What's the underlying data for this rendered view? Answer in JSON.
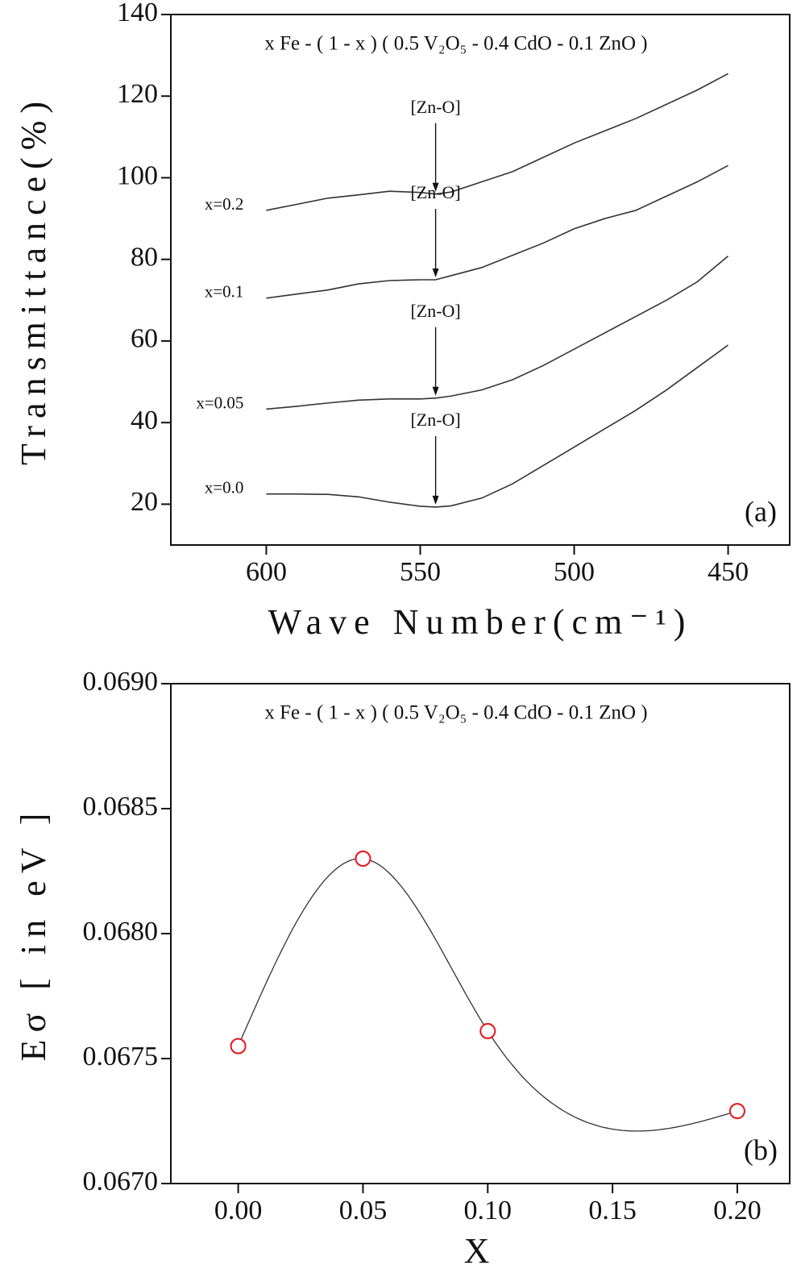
{
  "chart_data": [
    {
      "type": "line",
      "title": "x Fe - ( 1 - x ) ( 0.5 V₂O₅ - 0.4 CdO - 0.1 ZnO )",
      "x_label": "Wave Number(cm⁻¹)",
      "y_label": "Transmittance(%)",
      "panel_label": "(a)",
      "x": [
        600,
        590,
        580,
        570,
        560,
        550,
        545,
        540,
        530,
        520,
        510,
        500,
        490,
        480,
        470,
        460,
        450
      ],
      "series": [
        {
          "name": "x=0.2",
          "color": "#333333",
          "annotation": "[Zn-O]",
          "values": [
            92,
            93.5,
            95,
            95.8,
            96.7,
            96.4,
            96,
            96.5,
            99,
            101.5,
            105,
            108.5,
            111.5,
            114.5,
            118,
            121.5,
            125.5
          ]
        },
        {
          "name": "x=0.1",
          "color": "#333333",
          "annotation": "[Zn-O]",
          "values": [
            70.5,
            71.5,
            72.5,
            74,
            74.8,
            75,
            75,
            76,
            78,
            81,
            84,
            87.5,
            90,
            92,
            95.5,
            99,
            103
          ]
        },
        {
          "name": "x=0.05",
          "color": "#333333",
          "annotation": "[Zn-O]",
          "values": [
            43.3,
            44,
            44.8,
            45.5,
            45.8,
            45.8,
            46,
            46.5,
            48,
            50.5,
            54,
            58,
            62,
            66,
            70,
            74.5,
            80.8
          ]
        },
        {
          "name": "x=0.0",
          "color": "#333333",
          "annotation": "[Zn-O]",
          "values": [
            22.5,
            22.5,
            22.4,
            21.8,
            20.5,
            19.5,
            19.3,
            19.6,
            21.5,
            25,
            29.5,
            34,
            38.5,
            43,
            48,
            53.5,
            59
          ]
        }
      ],
      "xlim": [
        631,
        430
      ],
      "xticks": [
        600,
        550,
        500,
        450
      ],
      "ylim": [
        10,
        140
      ],
      "yticks": [
        20,
        40,
        60,
        80,
        100,
        120,
        140
      ]
    },
    {
      "type": "scatter",
      "title": "x Fe - ( 1 - x ) ( 0.5 V₂O₅ - 0.4 CdO - 0.1 ZnO )",
      "x_label": "X",
      "y_label": "Eσ [ in eV ]",
      "panel_label": "(b)",
      "x": [
        0,
        0.05,
        0.1,
        0.2
      ],
      "values": [
        0.06755,
        0.0683,
        0.06761,
        0.06729
      ],
      "color": "#e8131b",
      "line_color": "#333333",
      "xlim": [
        -0.027,
        0.221
      ],
      "xticks": [
        {
          "value": 0,
          "label": "0.00"
        },
        0.05,
        {
          "value": 0.1,
          "label": "0.10"
        },
        0.15,
        {
          "value": 0.2,
          "label": "0.20"
        }
      ],
      "ylim": [
        0.067,
        0.069
      ],
      "yticks": [
        {
          "value": 0.067,
          "label": "0.0670"
        },
        0.0675,
        {
          "value": 0.068,
          "label": "0.0680"
        },
        0.0685,
        {
          "value": 0.069,
          "label": "0.0690"
        }
      ]
    }
  ]
}
